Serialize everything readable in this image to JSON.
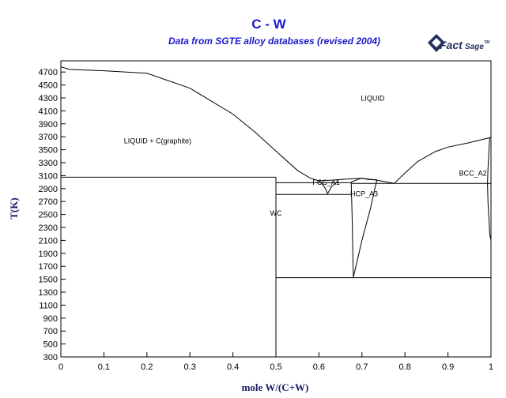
{
  "header": {
    "title": "C - W",
    "subtitle": "Data from SGTE alloy databases (revised 2004)"
  },
  "logo": {
    "text_main": "Fact",
    "text_secondary": "Sage",
    "mark": "TM"
  },
  "chart_data": {
    "type": "line",
    "title": "C - W",
    "subtitle": "Data from SGTE alloy databases (revised 2004)",
    "xlabel": "mole W/(C+W)",
    "ylabel": "T(K)",
    "xlim": [
      0,
      1
    ],
    "ylim": [
      300,
      4800
    ],
    "xticks": [
      0,
      0.1,
      0.2,
      0.3,
      0.4,
      0.5,
      0.6,
      0.7,
      0.8,
      0.9,
      1
    ],
    "xtick_labels": [
      "0",
      "0.1",
      "0.2",
      "0.3",
      "0.4",
      "0.5",
      "0.6",
      "0.7",
      "0.8",
      "0.9",
      "1"
    ],
    "yticks": [
      300,
      500,
      700,
      900,
      1100,
      1300,
      1500,
      1700,
      1900,
      2100,
      2300,
      2500,
      2700,
      2900,
      3100,
      3300,
      3500,
      3700,
      3900,
      4100,
      4300,
      4500,
      4700
    ],
    "grid": false,
    "region_labels": [
      {
        "text": "LIQUID",
        "x": 0.725,
        "y": 4260
      },
      {
        "text": "LIQUID + C(graphite)",
        "x": 0.225,
        "y": 3600
      },
      {
        "text": "FCC_A1",
        "x": 0.617,
        "y": 2960
      },
      {
        "text": "HCP_A3",
        "x": 0.705,
        "y": 2780
      },
      {
        "text": "BCC_A2",
        "x": 0.99,
        "y": 3100
      },
      {
        "text": "WC",
        "x": 0.5,
        "y": 2480
      }
    ],
    "series": [
      {
        "values": [
          [
            0,
            4780
          ],
          [
            0.02,
            4740
          ],
          [
            0.1,
            4720
          ],
          [
            0.2,
            4680
          ],
          [
            0.3,
            4450
          ],
          [
            0.4,
            4050
          ],
          [
            0.45,
            3780
          ],
          [
            0.5,
            3480
          ],
          [
            0.55,
            3180
          ],
          [
            0.58,
            3060
          ],
          [
            0.6,
            3020
          ]
        ]
      },
      {
        "values": [
          [
            0.6,
            3020
          ],
          [
            0.63,
            3030
          ],
          [
            0.66,
            3045
          ],
          [
            0.7,
            3060
          ],
          [
            0.73,
            3035
          ],
          [
            0.76,
            3000
          ],
          [
            0.775,
            2980
          ]
        ]
      },
      {
        "values": [
          [
            0.775,
            2980
          ],
          [
            0.8,
            3140
          ],
          [
            0.83,
            3320
          ],
          [
            0.87,
            3470
          ],
          [
            0.9,
            3540
          ],
          [
            0.95,
            3610
          ],
          [
            1,
            3690
          ]
        ]
      },
      {
        "values": [
          [
            0.6,
            3020
          ],
          [
            0.61,
            2950
          ],
          [
            0.615,
            2900
          ],
          [
            0.62,
            2820
          ],
          [
            0.63,
            2935
          ],
          [
            0.64,
            2990
          ],
          [
            0.645,
            3020
          ]
        ]
      },
      {
        "values": [
          [
            0.675,
            3000
          ],
          [
            0.677,
            2500
          ],
          [
            0.68,
            1530
          ]
        ]
      },
      {
        "values": [
          [
            0.68,
            1530
          ],
          [
            0.7,
            2100
          ],
          [
            0.72,
            2600
          ],
          [
            0.73,
            2900
          ],
          [
            0.735,
            3035
          ]
        ]
      },
      {
        "values": [
          [
            0.675,
            3000
          ],
          [
            0.69,
            3040
          ],
          [
            0.7,
            3060
          ],
          [
            0.715,
            3040
          ],
          [
            0.735,
            3035
          ]
        ]
      },
      {
        "values": [
          [
            0.997,
            3690
          ],
          [
            0.993,
            3200
          ],
          [
            0.992,
            2980
          ],
          [
            0.993,
            2700
          ],
          [
            0.997,
            2200
          ],
          [
            1,
            2100
          ]
        ]
      },
      {
        "values": [
          [
            0,
            3075
          ],
          [
            0.5,
            3075
          ]
        ]
      },
      {
        "values": [
          [
            0.5,
            300
          ],
          [
            0.5,
            3075
          ]
        ]
      },
      {
        "values": [
          [
            0.5,
            2990
          ],
          [
            0.675,
            2990
          ]
        ]
      },
      {
        "values": [
          [
            0.5,
            2810
          ],
          [
            0.675,
            2810
          ]
        ]
      },
      {
        "values": [
          [
            0.5,
            1525
          ],
          [
            1,
            1525
          ]
        ]
      },
      {
        "values": [
          [
            0.675,
            2980
          ],
          [
            1,
            2980
          ]
        ]
      }
    ]
  }
}
